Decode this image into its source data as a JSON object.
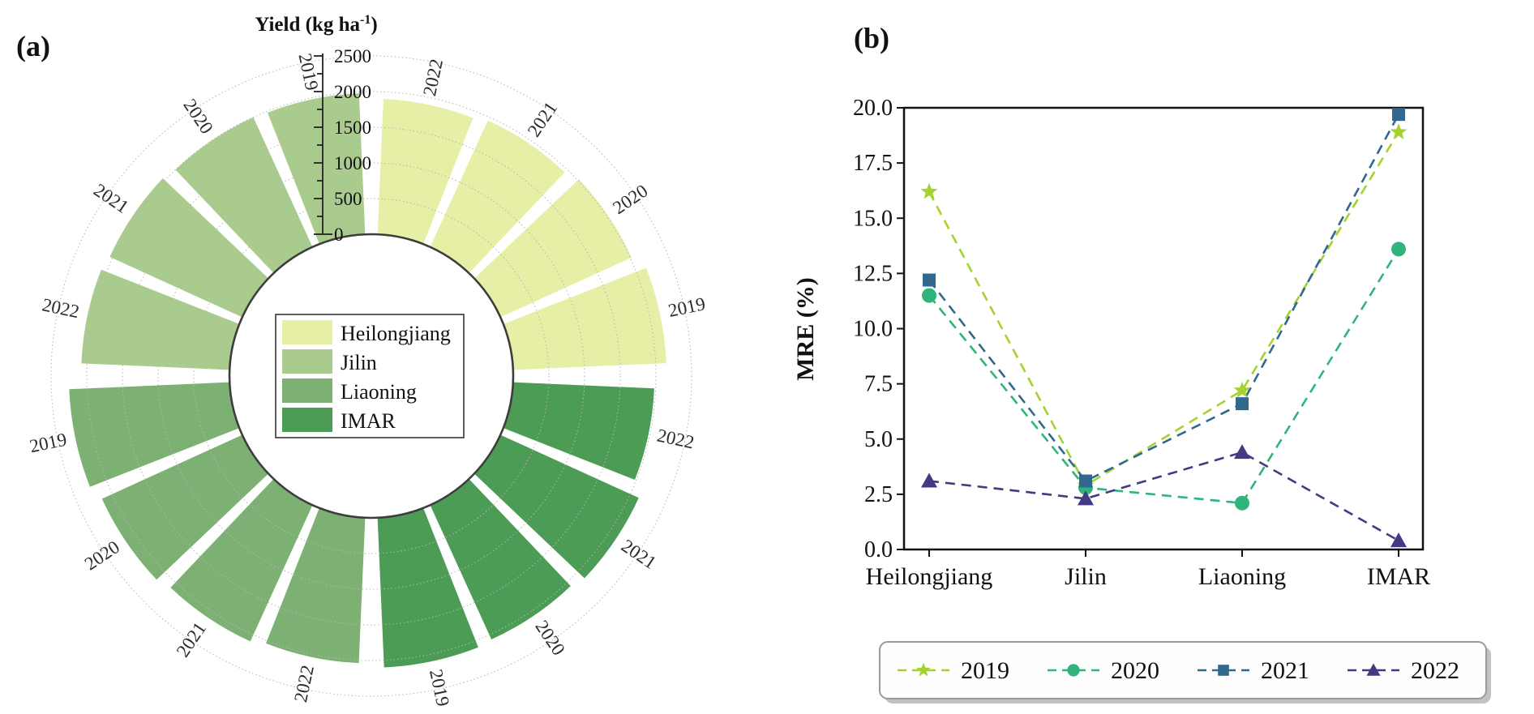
{
  "tags": {
    "a": "(a)",
    "b": "(b)"
  },
  "chart_data": [
    {
      "id": "yield-polar-bar-chart",
      "type": "bar",
      "subtype": "polar_bar",
      "title_parts": {
        "prefix": "Yield (kg ha",
        "sup": "-1",
        "suffix": ")"
      },
      "radial_axis": {
        "min": 0,
        "max": 2500,
        "major_step": 500,
        "minor_step": 250,
        "tick_labels": [
          "0",
          "500",
          "1000",
          "1500",
          "2000",
          "2500"
        ]
      },
      "years": [
        "2019",
        "2020",
        "2021",
        "2022"
      ],
      "provinces": [
        {
          "name": "Heilongjiang",
          "color": "#e6efa5",
          "values": {
            "2019": 2150,
            "2020": 2020,
            "2021": 1950,
            "2022": 1900
          }
        },
        {
          "name": "Jilin",
          "color": "#aacb8e",
          "values": {
            "2019": 1980,
            "2020": 2000,
            "2021": 2040,
            "2022": 2080
          }
        },
        {
          "name": "Liaoning",
          "color": "#7cb173",
          "values": {
            "2019": 2250,
            "2020": 2160,
            "2021": 2100,
            "2022": 2040
          }
        },
        {
          "name": "IMAR",
          "color": "#4d9c56",
          "values": {
            "2019": 2100,
            "2020": 2070,
            "2021": 2130,
            "2022": 1980
          }
        }
      ],
      "legend": [
        "Heilongjiang",
        "Jilin",
        "Liaoning",
        "IMAR"
      ],
      "grid": "dotted-circles",
      "legend_position": "center"
    },
    {
      "id": "mre-line-chart",
      "type": "line",
      "ylabel": "MRE (%)",
      "ylim": [
        0,
        20
      ],
      "yticks": [
        "0.0",
        "2.5",
        "5.0",
        "7.5",
        "10.0",
        "12.5",
        "15.0",
        "17.5",
        "20.0"
      ],
      "categories": [
        "Heilongjiang",
        "Jilin",
        "Liaoning",
        "IMAR"
      ],
      "series": [
        {
          "name": "2019",
          "marker": "star",
          "color": "#a4d32f",
          "values": [
            16.2,
            2.9,
            7.2,
            18.9
          ]
        },
        {
          "name": "2020",
          "marker": "circle",
          "color": "#2fb47c",
          "values": [
            11.5,
            2.8,
            2.1,
            13.6
          ]
        },
        {
          "name": "2021",
          "marker": "square",
          "color": "#31688e",
          "values": [
            12.2,
            3.1,
            6.6,
            19.7
          ]
        },
        {
          "name": "2022",
          "marker": "triangle",
          "color": "#443983",
          "values": [
            3.1,
            2.3,
            4.4,
            0.4
          ]
        }
      ],
      "line_style": "dashed",
      "grid": "off",
      "legend_position": "bottom"
    }
  ]
}
